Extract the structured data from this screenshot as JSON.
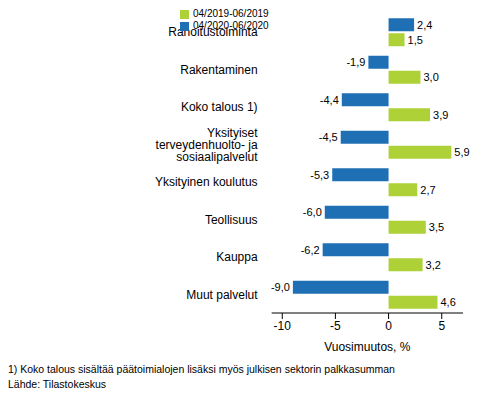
{
  "chart_data": {
    "type": "bar",
    "orientation": "horizontal",
    "categories": [
      "Rahoitustoiminta",
      "Rakentaminen",
      "Koko talous 1)",
      "Yksityiset terveydenhuolto- ja sosiaalipalvelut",
      "Yksityinen koulutus",
      "Teollisuus",
      "Kauppa",
      "Muut palvelut"
    ],
    "series": [
      {
        "name": "04/2020-06/2020",
        "color": "#1f6fb4",
        "values": [
          2.4,
          -1.9,
          -4.4,
          -4.5,
          -5.3,
          -6.0,
          -6.2,
          -9.0
        ],
        "value_labels": [
          "2,4",
          "-1,9",
          "-4,4",
          "-4,5",
          "-5,3",
          "-6,0",
          "-6,2",
          "-9,0"
        ]
      },
      {
        "name": "04/2019-06/2019",
        "color": "#add136",
        "values": [
          1.5,
          3.0,
          3.9,
          5.9,
          2.7,
          3.5,
          3.2,
          4.6
        ],
        "value_labels": [
          "1,5",
          "3,0",
          "3,9",
          "5,9",
          "2,7",
          "3,5",
          "3,2",
          "4,6"
        ]
      }
    ],
    "x_label": "Vuosimuutos, %",
    "xlim": [
      -11,
      7
    ],
    "xticks": [
      -10,
      -5,
      0,
      5
    ],
    "grid": false,
    "legend": "upper left",
    "data_labels": true,
    "annotations": [
      "1) Koko talous sisältää päätoimialojen lisäksi myös julkisen sektorin palkkasumman",
      "Lähde: Tilastokeskus"
    ]
  }
}
